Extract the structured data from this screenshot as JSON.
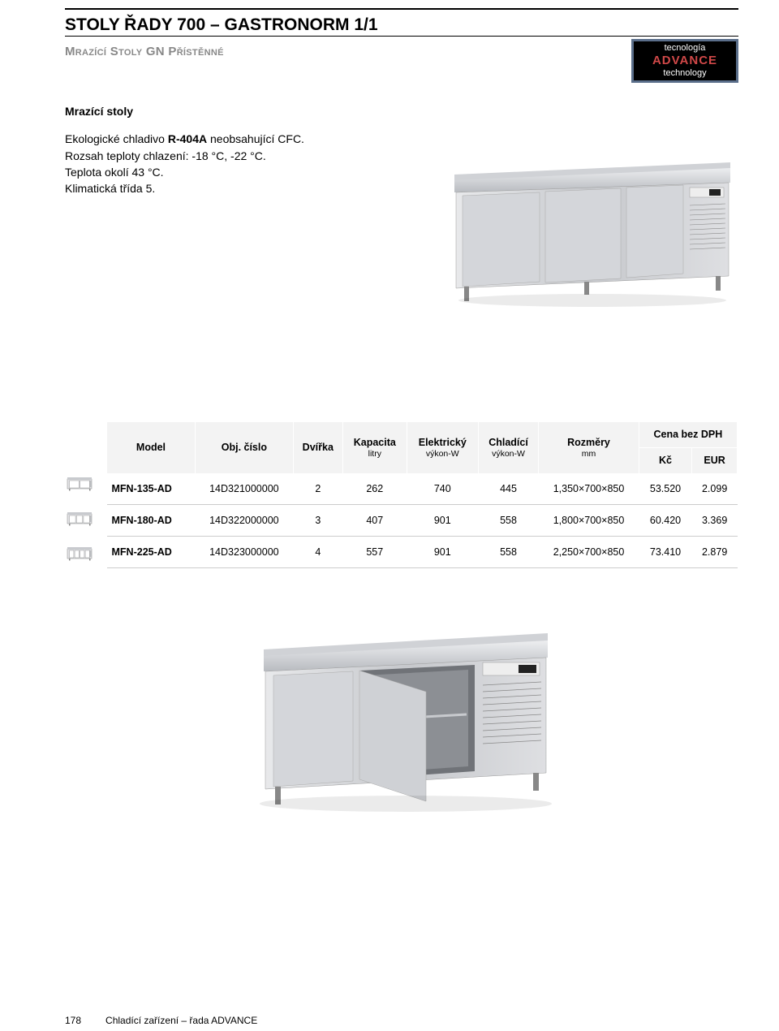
{
  "header": {
    "title": "STOLY ŘADY 700 – GASTRONORM 1/1",
    "subtitle": "Mrazící Stoly GN Přístěnné"
  },
  "badge": {
    "line1": "tecnología",
    "line2": "ADVANCE",
    "line3": "technology"
  },
  "intro": {
    "lead": "Mrazící stoly",
    "line1a": "Ekologické chladivo ",
    "line1b": "R-404A",
    "line1c": " neobsahující CFC.",
    "line2": "Rozsah teploty chlazení: -18 °C, -22 °C.",
    "line3": "Teplota okolí 43 °C.",
    "line4": "Klimatická třída 5."
  },
  "table": {
    "headers": {
      "model": "Model",
      "obj": "Obj. číslo",
      "doors": "Dvířka",
      "capacity": "Kapacita",
      "capacity_sub": "litry",
      "elec": "Elektrický",
      "elec_sub": "výkon-W",
      "cool": "Chladící",
      "cool_sub": "výkon-W",
      "dims": "Rozměry",
      "dims_sub": "mm",
      "price_group": "Cena bez DPH",
      "kc": "Kč",
      "eur": "EUR"
    },
    "rows": [
      {
        "doors_icon": 2,
        "model": "MFN-135-AD",
        "obj": "14D321000000",
        "doors": "2",
        "capacity": "262",
        "elec": "740",
        "cool": "445",
        "dims": "1,350×700×850",
        "kc": "53.520",
        "eur": "2.099"
      },
      {
        "doors_icon": 3,
        "model": "MFN-180-AD",
        "obj": "14D322000000",
        "doors": "3",
        "capacity": "407",
        "elec": "901",
        "cool": "558",
        "dims": "1,800×700×850",
        "kc": "60.420",
        "eur": "3.369"
      },
      {
        "doors_icon": 4,
        "model": "MFN-225-AD",
        "obj": "14D323000000",
        "doors": "4",
        "capacity": "557",
        "elec": "901",
        "cool": "558",
        "dims": "2,250×700×850",
        "kc": "73.410",
        "eur": "2.879"
      }
    ]
  },
  "footer": {
    "page": "178",
    "text": "Chladící zařízení – řada ADVANCE"
  },
  "style": {
    "steel1": "#dcdde0",
    "steel2": "#bfc2c7",
    "steel3": "#a8abb0",
    "dark": "#6a6d72"
  }
}
